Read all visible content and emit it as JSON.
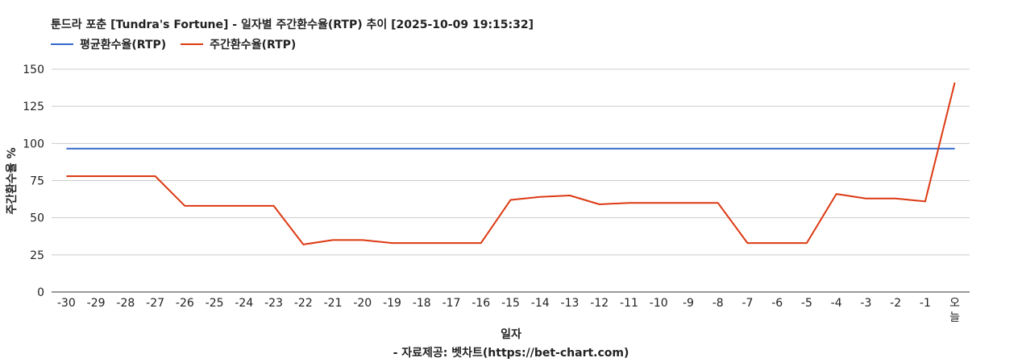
{
  "chart_data": {
    "type": "line",
    "title": "툰드라 포춘 [Tundra's Fortune] - 일자별 주간환수율(RTP) 추이 [2025-10-09 19:15:32]",
    "xlabel": "일자",
    "ylabel": "주간환수율 %",
    "credit": "- 자료제공: 벳차트(https://bet-chart.com)",
    "categories": [
      "-30",
      "-29",
      "-28",
      "-27",
      "-26",
      "-25",
      "-24",
      "-23",
      "-22",
      "-21",
      "-20",
      "-19",
      "-18",
      "-17",
      "-16",
      "-15",
      "-14",
      "-13",
      "-12",
      "-11",
      "-10",
      "-9",
      "-8",
      "-7",
      "-6",
      "-5",
      "-4",
      "-3",
      "-2",
      "-1",
      "오늘"
    ],
    "series": [
      {
        "name": "평균환수율(RTP)",
        "color": "#3366cc",
        "values": [
          96.5,
          96.5,
          96.5,
          96.5,
          96.5,
          96.5,
          96.5,
          96.5,
          96.5,
          96.5,
          96.5,
          96.5,
          96.5,
          96.5,
          96.5,
          96.5,
          96.5,
          96.5,
          96.5,
          96.5,
          96.5,
          96.5,
          96.5,
          96.5,
          96.5,
          96.5,
          96.5,
          96.5,
          96.5,
          96.5,
          96.5
        ]
      },
      {
        "name": "주간환수율(RTP)",
        "color": "#dc3912",
        "values": [
          78,
          78,
          78,
          78,
          58,
          58,
          58,
          58,
          32,
          35,
          35,
          33,
          33,
          33,
          33,
          62,
          64,
          65,
          59,
          60,
          60,
          60,
          60,
          33,
          33,
          33,
          66,
          63,
          63,
          61,
          141
        ]
      }
    ],
    "ylim": [
      0,
      150
    ],
    "yticks": [
      0,
      25,
      50,
      75,
      100,
      125,
      150
    ],
    "grid": true,
    "legend_position": "top-left"
  }
}
